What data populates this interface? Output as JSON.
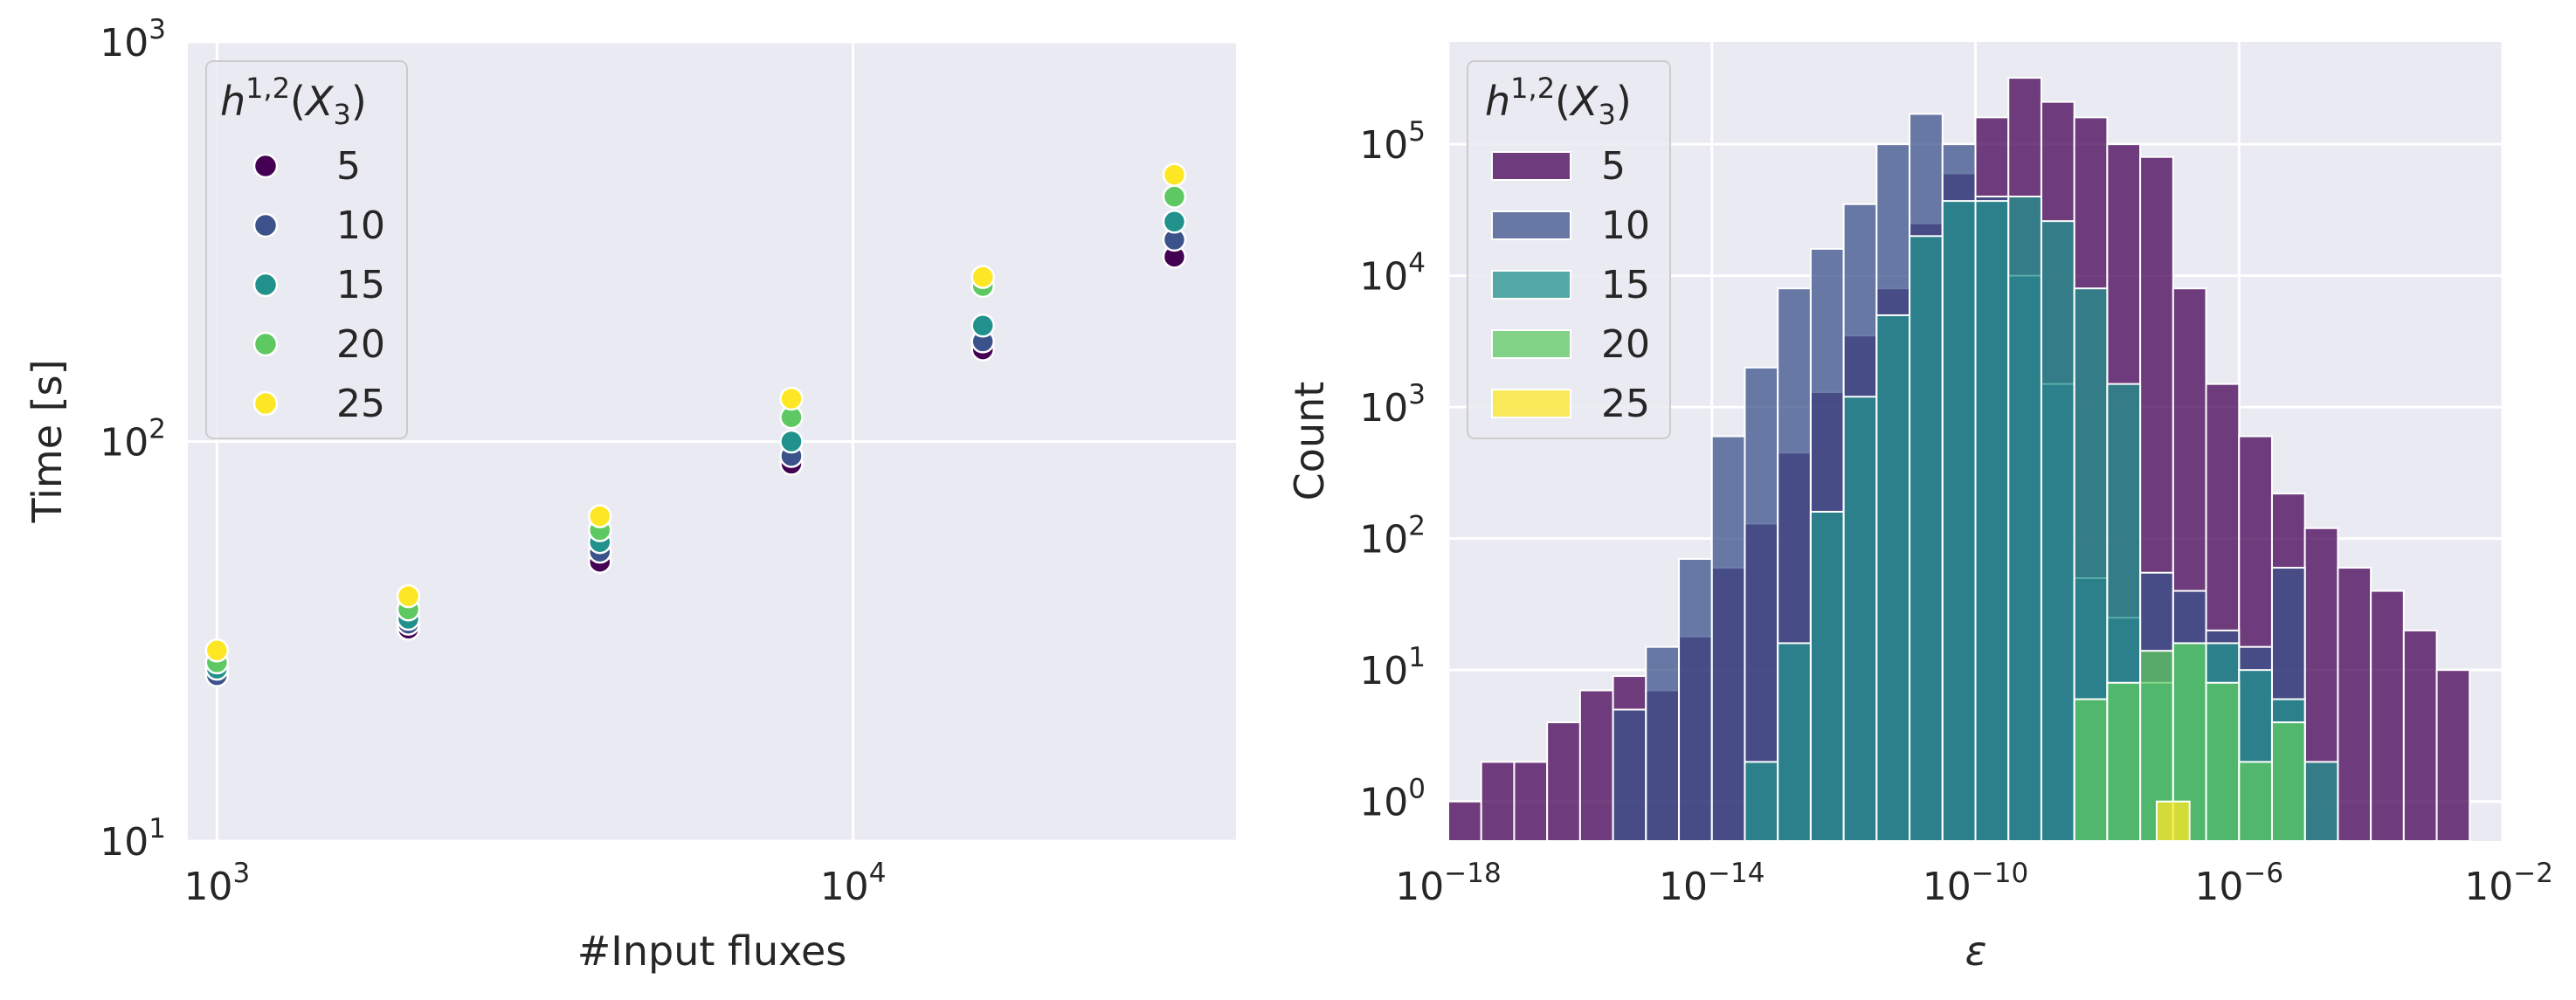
{
  "chart_data": [
    {
      "type": "scatter",
      "xlabel": "#Input fluxes",
      "ylabel": "Time [s]",
      "xscale": "log",
      "yscale": "log",
      "xlim": [
        900,
        40000
      ],
      "ylim": [
        10,
        1000
      ],
      "xticks": [
        {
          "base": "10",
          "exp": "3"
        },
        {
          "base": "10",
          "exp": "4"
        }
      ],
      "yticks": [
        {
          "base": "10",
          "exp": "1"
        },
        {
          "base": "10",
          "exp": "2"
        },
        {
          "base": "10",
          "exp": "3"
        }
      ],
      "grid": true,
      "legend": {
        "position": "top-left",
        "title": "h^{1,2}(X_3)"
      },
      "x": [
        1000,
        2000,
        4000,
        8000,
        16000,
        32000
      ],
      "series": [
        {
          "name": "5",
          "color": "#440154",
          "values": [
            26,
            34,
            50,
            88,
            170,
            290
          ]
        },
        {
          "name": "10",
          "color": "#3b528b",
          "values": [
            26,
            35,
            53,
            92,
            178,
            320
          ]
        },
        {
          "name": "15",
          "color": "#21918c",
          "values": [
            27,
            36,
            56,
            100,
            195,
            355
          ]
        },
        {
          "name": "20",
          "color": "#5ec962",
          "values": [
            28,
            38,
            60,
            115,
            245,
            410
          ]
        },
        {
          "name": "25",
          "color": "#fde725",
          "values": [
            30,
            41,
            65,
            128,
            258,
            465
          ]
        }
      ]
    },
    {
      "type": "bar",
      "subtype": "histogram",
      "xlabel": "ε",
      "ylabel": "Count",
      "xscale": "log",
      "yscale": "log",
      "xlim_exp": [
        -18,
        -2
      ],
      "ylim": [
        0.5,
        600000
      ],
      "xticks": [
        {
          "base": "10",
          "exp": "−18"
        },
        {
          "base": "10",
          "exp": "−14"
        },
        {
          "base": "10",
          "exp": "−10"
        },
        {
          "base": "10",
          "exp": "−6"
        },
        {
          "base": "10",
          "exp": "−2"
        }
      ],
      "yticks": [
        {
          "base": "10",
          "exp": "0"
        },
        {
          "base": "10",
          "exp": "1"
        },
        {
          "base": "10",
          "exp": "2"
        },
        {
          "base": "10",
          "exp": "3"
        },
        {
          "base": "10",
          "exp": "4"
        },
        {
          "base": "10",
          "exp": "5"
        }
      ],
      "grid": true,
      "legend": {
        "position": "top-left",
        "title": "h^{1,2}(X_3)"
      },
      "series": [
        {
          "name": "5",
          "color": "#440154",
          "opacity": 0.75,
          "start_exp": -18.0,
          "bin_width_exp": 0.5,
          "counts": [
            1,
            2,
            2,
            4,
            7,
            9,
            7,
            18,
            60,
            130,
            450,
            1300,
            3500,
            8000,
            25000,
            60000,
            160000,
            320000,
            210000,
            160000,
            100000,
            80000,
            8000,
            1500,
            600,
            220,
            120,
            60,
            40,
            20,
            10
          ]
        },
        {
          "name": "10",
          "color": "#3b528b",
          "opacity": 0.75,
          "start_exp": -15.5,
          "bin_width_exp": 0.5,
          "counts": [
            5,
            15,
            70,
            600,
            2000,
            8000,
            16000,
            35000,
            100000,
            170000,
            100000,
            40000,
            10000,
            1500,
            50,
            25,
            55,
            40,
            20,
            15,
            60
          ]
        },
        {
          "name": "15",
          "color": "#21918c",
          "opacity": 0.75,
          "start_exp": -13.5,
          "bin_width_exp": 0.5,
          "counts": [
            2,
            16,
            160,
            1200,
            5000,
            20000,
            37000,
            37000,
            40000,
            26000,
            8000,
            1500,
            8,
            16,
            16,
            10,
            6,
            2
          ]
        },
        {
          "name": "20",
          "color": "#5ec962",
          "opacity": 0.75,
          "start_exp": -8.5,
          "bin_width_exp": 0.5,
          "counts": [
            6,
            8,
            14,
            16,
            8,
            2,
            4
          ]
        },
        {
          "name": "25",
          "color": "#fde725",
          "opacity": 0.75,
          "start_exp": -7.25,
          "bin_width_exp": 0.5,
          "counts": [
            1
          ]
        }
      ]
    }
  ]
}
